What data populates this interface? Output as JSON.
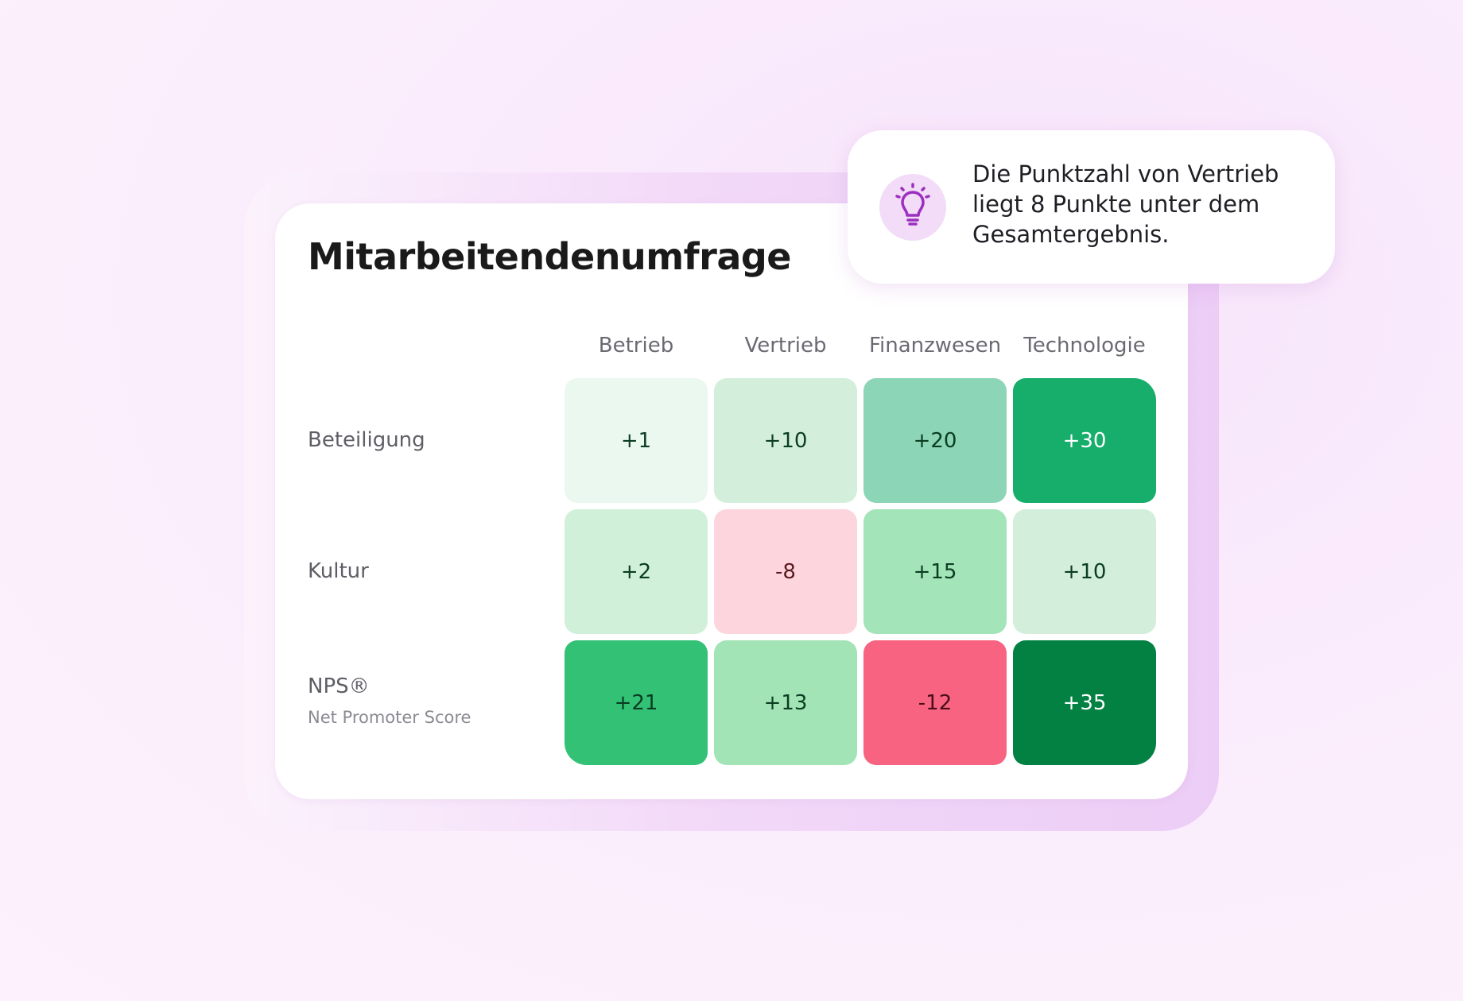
{
  "chart_data": {
    "type": "heatmap",
    "title": "Mitarbeitendenumfrage",
    "x_categories": [
      "Betrieb",
      "Vertrieb",
      "Finanzwesen",
      "Technologie"
    ],
    "y_categories": [
      "Beteiligung",
      "Kultur",
      "NPS®"
    ],
    "y_sublabels": [
      null,
      null,
      "Net Promoter Score"
    ],
    "values": [
      [
        1,
        10,
        20,
        30
      ],
      [
        2,
        -8,
        15,
        10
      ],
      [
        21,
        13,
        -12,
        35
      ]
    ],
    "value_labels": [
      [
        "+1",
        "+10",
        "+20",
        "+30"
      ],
      [
        "+2",
        "-8",
        "+15",
        "+10"
      ],
      [
        "+21",
        "+13",
        "-12",
        "+35"
      ]
    ],
    "colors": [
      [
        "#ebf8ef",
        "#d3efdc",
        "#8cd5b7",
        "#16ae6a"
      ],
      [
        "#d0f0da",
        "#fdd5dc",
        "#a3e4b8",
        "#d3efdc"
      ],
      [
        "#33c176",
        "#a2e4b5",
        "#f76380",
        "#028143"
      ]
    ],
    "text_colors": [
      [
        "#0b3d22",
        "#0b3d22",
        "#0b3d22",
        "#ffffff"
      ],
      [
        "#0b3d22",
        "#5a1a22",
        "#0b3d22",
        "#0b3d22"
      ],
      [
        "#0b3d22",
        "#0b3d22",
        "#4a0e1a",
        "#ffffff"
      ]
    ],
    "annotation": "Die Punktzahl von Vertrieb liegt 8 Punkte unter dem Gesamtergebnis."
  }
}
